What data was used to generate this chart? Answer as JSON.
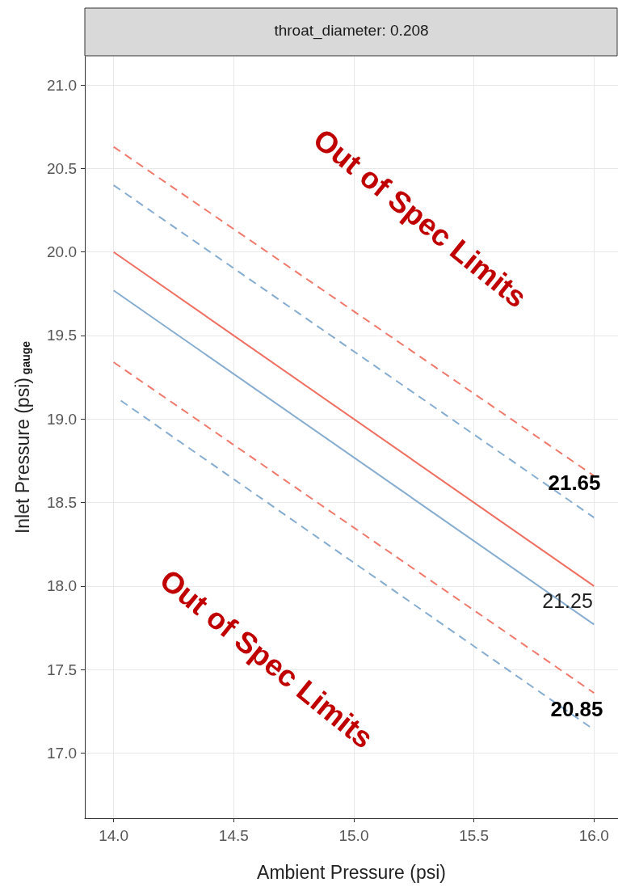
{
  "chart_data": {
    "type": "line",
    "title": "throat_diameter: 0.208",
    "xlabel": "Ambient Pressure (psi)",
    "ylabel": "Inlet Pressure (psi)$_{gauge}$",
    "xlim": [
      13.88,
      16.1
    ],
    "xticks": [
      {
        "value": 14,
        "label": "14.0"
      },
      14.5,
      {
        "value": 15,
        "label": "15.0"
      },
      15.5,
      {
        "value": 16,
        "label": "16.0"
      }
    ],
    "ylim": [
      16.61,
      21.17
    ],
    "yticks": [
      {
        "value": 17,
        "label": "17.0"
      },
      17.5,
      {
        "value": 18,
        "label": "18.0"
      },
      18.5,
      {
        "value": 19,
        "label": "19.0"
      },
      19.5,
      {
        "value": 20,
        "label": "20.0"
      },
      20.5,
      {
        "value": 21,
        "label": "21.0"
      }
    ],
    "grid": true,
    "marker": "none",
    "series": [
      {
        "color": "#ef7a6c",
        "line_style": "dashed",
        "x": [
          14.0,
          16.0
        ],
        "values": [
          20.63,
          18.66
        ]
      },
      {
        "color": "#86acd0",
        "line_style": "dashed",
        "x": [
          14.0,
          16.0
        ],
        "values": [
          20.4,
          18.41
        ]
      },
      {
        "color": "#ef6f61",
        "line_style": "solid",
        "x": [
          14.0,
          16.0
        ],
        "values": [
          20.0,
          18.0
        ]
      },
      {
        "color": "#86acd0",
        "line_style": "solid",
        "x": [
          14.0,
          16.0
        ],
        "values": [
          19.77,
          17.77
        ]
      },
      {
        "color": "#ef7a6c",
        "line_style": "dashed",
        "x": [
          14.0,
          16.0
        ],
        "values": [
          19.34,
          17.36
        ]
      },
      {
        "color": "#86acd0",
        "line_style": "dashed",
        "x": [
          14.03,
          16.0
        ],
        "values": [
          19.11,
          17.14
        ]
      }
    ],
    "annotations": [
      "Out of Spec Limits",
      "Out of Spec Limits",
      "21.65",
      {
        "text": "21.25",
        "x": 15.89,
        "y": 17.91
      },
      "20.85"
    ]
  }
}
